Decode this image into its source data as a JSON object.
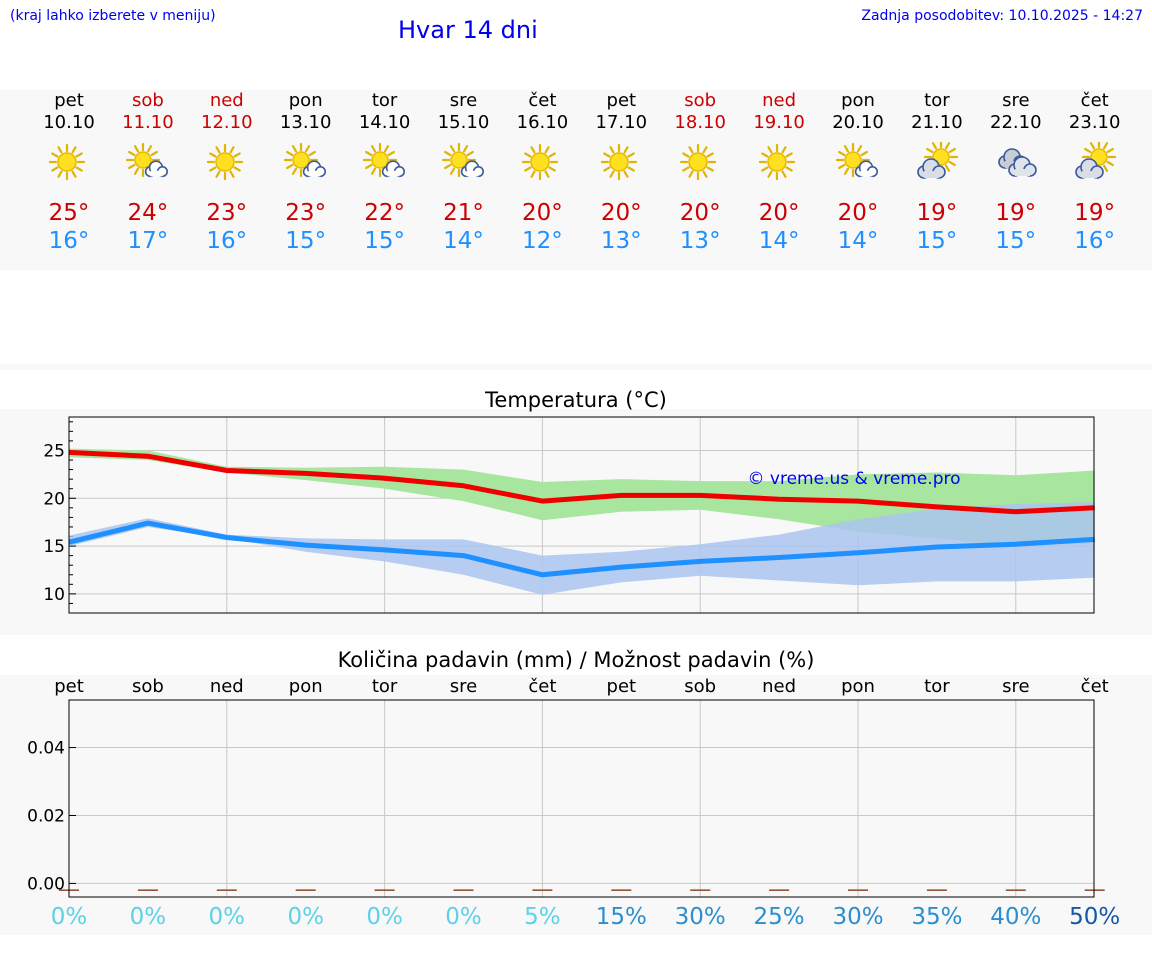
{
  "header": {
    "hint": "(kraj lahko izberete v meniju)",
    "title": "Hvar 14 dni",
    "updated": "Zadnja posodobitev: 10.10.2025 - 14:27"
  },
  "days": [
    {
      "name": "pet",
      "date": "10.10",
      "weekend": false,
      "icon": "sun",
      "max": "25°",
      "min": "16°",
      "prob": "0%"
    },
    {
      "name": "sob",
      "date": "11.10",
      "weekend": true,
      "icon": "sun-cloud",
      "max": "24°",
      "min": "17°",
      "prob": "0%"
    },
    {
      "name": "ned",
      "date": "12.10",
      "weekend": true,
      "icon": "sun",
      "max": "23°",
      "min": "16°",
      "prob": "0%"
    },
    {
      "name": "pon",
      "date": "13.10",
      "weekend": false,
      "icon": "sun-cloud",
      "max": "23°",
      "min": "15°",
      "prob": "0%"
    },
    {
      "name": "tor",
      "date": "14.10",
      "weekend": false,
      "icon": "sun-cloud",
      "max": "22°",
      "min": "15°",
      "prob": "0%"
    },
    {
      "name": "sre",
      "date": "15.10",
      "weekend": false,
      "icon": "sun-cloud",
      "max": "21°",
      "min": "14°",
      "prob": "0%"
    },
    {
      "name": "čet",
      "date": "16.10",
      "weekend": false,
      "icon": "sun",
      "max": "20°",
      "min": "12°",
      "prob": "5%"
    },
    {
      "name": "pet",
      "date": "17.10",
      "weekend": false,
      "icon": "sun",
      "max": "20°",
      "min": "13°",
      "prob": "15%"
    },
    {
      "name": "sob",
      "date": "18.10",
      "weekend": true,
      "icon": "sun",
      "max": "20°",
      "min": "13°",
      "prob": "30%"
    },
    {
      "name": "ned",
      "date": "19.10",
      "weekend": true,
      "icon": "sun",
      "max": "20°",
      "min": "14°",
      "prob": "25%"
    },
    {
      "name": "pon",
      "date": "20.10",
      "weekend": false,
      "icon": "sun-cloud",
      "max": "20°",
      "min": "14°",
      "prob": "30%"
    },
    {
      "name": "tor",
      "date": "21.10",
      "weekend": false,
      "icon": "cloud-sun",
      "max": "19°",
      "min": "15°",
      "prob": "35%"
    },
    {
      "name": "sre",
      "date": "22.10",
      "weekend": false,
      "icon": "clouds",
      "max": "19°",
      "min": "15°",
      "prob": "40%"
    },
    {
      "name": "čet",
      "date": "23.10",
      "weekend": false,
      "icon": "cloud-sun",
      "max": "19°",
      "min": "16°",
      "prob": "50%"
    }
  ],
  "colors": {
    "max_line": "#ee0000",
    "min_line": "#1e90ff",
    "max_band": "#a8e6a0",
    "min_band": "#aac4f0",
    "overlap_band": "#8fc4a6",
    "prob_light": "#5bd2e8",
    "prob_mid": "#2a8fd0",
    "prob_dark": "#1658a8"
  },
  "chart_data": [
    {
      "type": "line",
      "title": "Temperatura (°C)",
      "watermark": "© vreme.us & vreme.pro",
      "ylim": [
        8,
        28.5
      ],
      "yticks": [
        10,
        15,
        20,
        25
      ],
      "x": [
        0,
        1,
        2,
        3,
        4,
        5,
        6,
        7,
        8,
        9,
        10,
        11,
        12,
        13
      ],
      "series": [
        {
          "name": "max",
          "values": [
            24.8,
            24.4,
            22.9,
            22.6,
            22.1,
            21.3,
            19.7,
            20.3,
            20.3,
            19.9,
            19.7,
            19.1,
            18.6,
            19.0
          ],
          "band_low": [
            24.3,
            24.0,
            22.7,
            21.9,
            21.0,
            19.7,
            17.7,
            18.6,
            18.8,
            17.8,
            16.5,
            15.8,
            15.0,
            15.3
          ],
          "band_high": [
            25.2,
            25.0,
            23.3,
            23.2,
            23.3,
            23.0,
            21.7,
            22.0,
            21.8,
            21.8,
            22.5,
            22.7,
            22.4,
            22.9
          ]
        },
        {
          "name": "min",
          "values": [
            15.4,
            17.4,
            15.9,
            15.1,
            14.6,
            14.0,
            12.0,
            12.8,
            13.4,
            13.8,
            14.3,
            14.9,
            15.2,
            15.7
          ],
          "band_low": [
            15.0,
            17.0,
            15.8,
            14.4,
            13.4,
            12.0,
            9.9,
            11.2,
            11.9,
            11.4,
            10.9,
            11.3,
            11.3,
            11.7
          ],
          "band_high": [
            16.1,
            17.9,
            16.2,
            15.8,
            15.7,
            15.7,
            14.0,
            14.4,
            15.2,
            16.2,
            17.8,
            18.9,
            19.4,
            19.6
          ]
        }
      ]
    },
    {
      "type": "bar",
      "title": "Količina padavin (mm) / Možnost padavin (%)",
      "categories": [
        "pet",
        "sob",
        "ned",
        "pon",
        "tor",
        "sre",
        "čet",
        "pet",
        "sob",
        "ned",
        "pon",
        "tor",
        "sre",
        "čet"
      ],
      "values": [
        0,
        0,
        0,
        0,
        0,
        0,
        0,
        0,
        0,
        0,
        0,
        0,
        0,
        0
      ],
      "probability": [
        "0%",
        "0%",
        "0%",
        "0%",
        "0%",
        "0%",
        "5%",
        "15%",
        "30%",
        "25%",
        "30%",
        "35%",
        "40%",
        "50%"
      ],
      "ylim": [
        -0.004,
        0.054
      ],
      "yticks": [
        "0.00",
        "0.02",
        "0.04"
      ]
    }
  ]
}
